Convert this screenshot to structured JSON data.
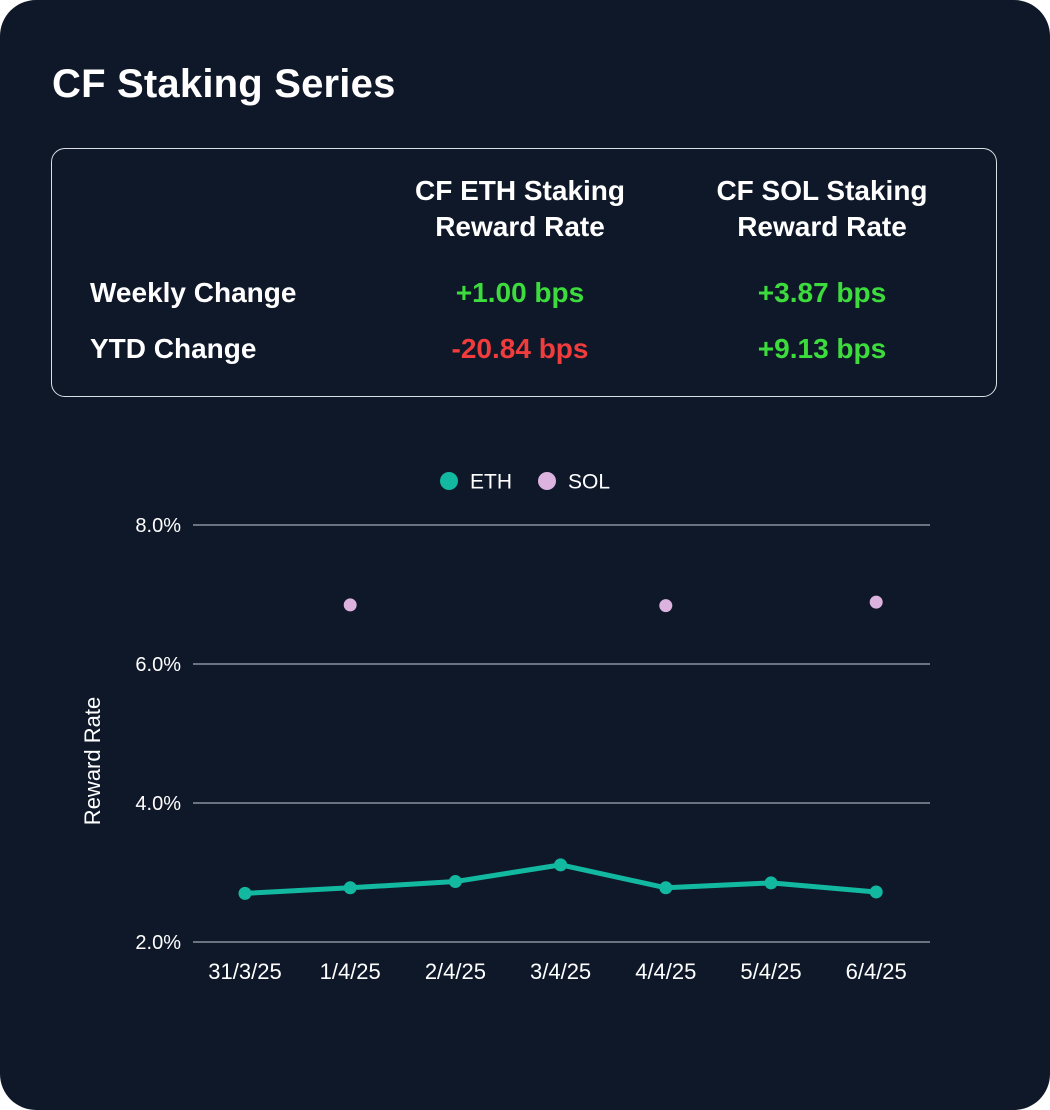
{
  "title": "CF Staking Series",
  "colors": {
    "background": "#0f1829",
    "positive": "#3ddc3d",
    "negative": "#f03c3c",
    "eth": "#12b8a0",
    "sol": "#dcb2de"
  },
  "table": {
    "columns": [
      [
        "CF ETH Staking",
        "Reward Rate"
      ],
      [
        "CF SOL Staking",
        "Reward Rate"
      ]
    ],
    "rows": [
      {
        "label": "Weekly Change",
        "values": [
          "+1.00 bps",
          "+3.87 bps"
        ],
        "signs": [
          "positive",
          "positive"
        ]
      },
      {
        "label": "YTD Change",
        "values": [
          "-20.84 bps",
          "+9.13 bps"
        ],
        "signs": [
          "negative",
          "positive"
        ]
      }
    ]
  },
  "chart_data": {
    "type": "line",
    "x": [
      "31/3/25",
      "1/4/25",
      "2/4/25",
      "3/4/25",
      "4/4/25",
      "5/4/25",
      "6/4/25"
    ],
    "ylabel": "Reward Rate",
    "ylim": [
      2.0,
      8.0
    ],
    "yticks": [
      "2.0%",
      "4.0%",
      "6.0%",
      "8.0%"
    ],
    "ytick_values": [
      2.0,
      4.0,
      6.0,
      8.0
    ],
    "grid": true,
    "legend_position": "top-center",
    "series": [
      {
        "name": "ETH",
        "style": "line-with-markers",
        "color": "#12b8a0",
        "values": [
          2.7,
          2.78,
          2.87,
          3.11,
          2.78,
          2.85,
          2.72
        ]
      },
      {
        "name": "SOL",
        "style": "markers-only",
        "color": "#dcb2de",
        "values": [
          null,
          6.85,
          null,
          null,
          6.84,
          null,
          6.89
        ]
      }
    ]
  }
}
